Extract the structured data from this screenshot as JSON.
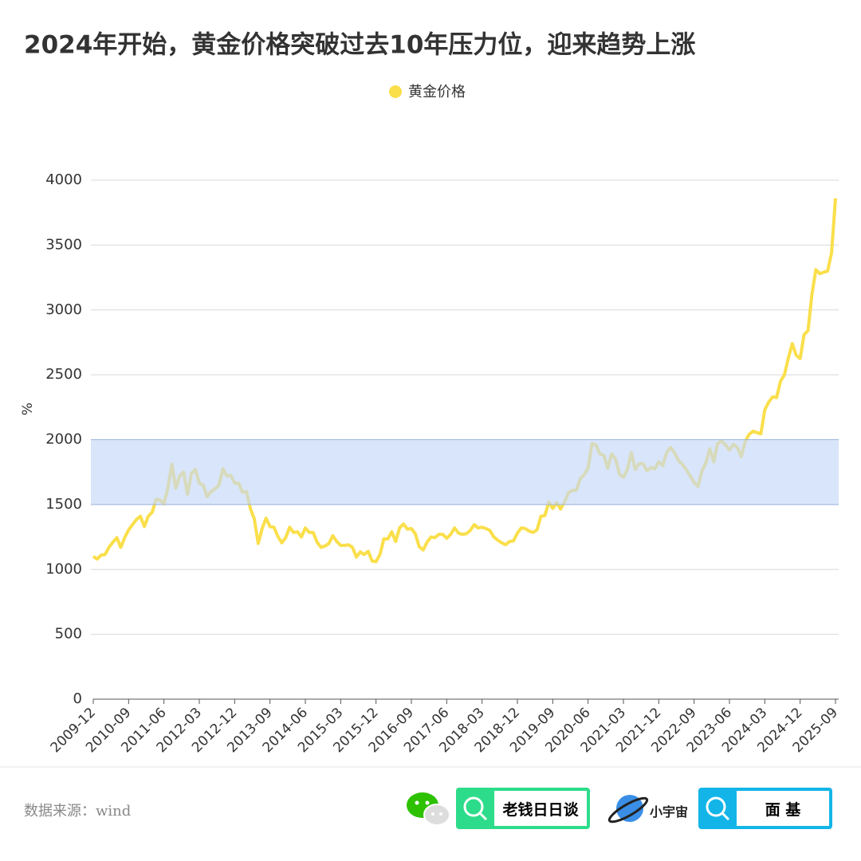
{
  "chart_data": {
    "type": "line",
    "title": "2024年开始，黄金价格突破过去10年压力位，迎来趋势上涨",
    "y_label": "%",
    "legend": "top",
    "grid": true,
    "categories": [
      "2009-12",
      null,
      null,
      null,
      null,
      null,
      null,
      null,
      null,
      "2010-09",
      null,
      null,
      null,
      null,
      null,
      null,
      null,
      null,
      "2011-06",
      null,
      null,
      null,
      null,
      null,
      null,
      null,
      null,
      "2012-03",
      null,
      null,
      null,
      null,
      null,
      null,
      null,
      null,
      "2012-12",
      null,
      null,
      null,
      null,
      null,
      null,
      null,
      null,
      "2013-09",
      null,
      null,
      null,
      null,
      null,
      null,
      null,
      null,
      "2014-06",
      null,
      null,
      null,
      null,
      null,
      null,
      null,
      null,
      "2015-03",
      null,
      null,
      null,
      null,
      null,
      null,
      null,
      null,
      "2015-12",
      null,
      null,
      null,
      null,
      null,
      null,
      null,
      null,
      "2016-09",
      null,
      null,
      null,
      null,
      null,
      null,
      null,
      null,
      "2017-06",
      null,
      null,
      null,
      null,
      null,
      null,
      null,
      null,
      "2018-03",
      null,
      null,
      null,
      null,
      null,
      null,
      null,
      null,
      "2018-12",
      null,
      null,
      null,
      null,
      null,
      null,
      null,
      null,
      "2019-09",
      null,
      null,
      null,
      null,
      null,
      null,
      null,
      null,
      "2020-06",
      null,
      null,
      null,
      null,
      null,
      null,
      null,
      null,
      "2021-03",
      null,
      null,
      null,
      null,
      null,
      null,
      null,
      null,
      "2021-12",
      null,
      null,
      null,
      null,
      null,
      null,
      null,
      null,
      "2022-09",
      null,
      null,
      null,
      null,
      null,
      null,
      null,
      null,
      "2023-06",
      null,
      null,
      null,
      null,
      null,
      null,
      null,
      null,
      "2024-03",
      null,
      null,
      null,
      null,
      null,
      null,
      null,
      null,
      "2024-12",
      null,
      null,
      null,
      null,
      null,
      null,
      null,
      null,
      "2025-09"
    ],
    "series": [
      {
        "name": "黄金价格",
        "color": "#fadf4b",
        "values": [
          1100,
          1080,
          1110,
          1115,
          1170,
          1210,
          1245,
          1170,
          1245,
          1305,
          1345,
          1385,
          1410,
          1330,
          1410,
          1440,
          1540,
          1535,
          1505,
          1630,
          1810,
          1625,
          1720,
          1750,
          1580,
          1740,
          1770,
          1665,
          1650,
          1560,
          1600,
          1620,
          1650,
          1775,
          1720,
          1725,
          1665,
          1665,
          1595,
          1600,
          1470,
          1390,
          1200,
          1315,
          1395,
          1330,
          1325,
          1255,
          1205,
          1245,
          1325,
          1285,
          1290,
          1250,
          1320,
          1285,
          1285,
          1210,
          1170,
          1180,
          1200,
          1260,
          1215,
          1185,
          1185,
          1190,
          1170,
          1095,
          1135,
          1115,
          1140,
          1065,
          1060,
          1115,
          1235,
          1235,
          1290,
          1215,
          1320,
          1350,
          1310,
          1315,
          1275,
          1175,
          1150,
          1210,
          1250,
          1245,
          1270,
          1270,
          1240,
          1270,
          1320,
          1280,
          1270,
          1275,
          1300,
          1345,
          1320,
          1325,
          1315,
          1300,
          1250,
          1225,
          1205,
          1190,
          1215,
          1220,
          1280,
          1320,
          1315,
          1295,
          1285,
          1305,
          1410,
          1415,
          1520,
          1470,
          1515,
          1465,
          1520,
          1590,
          1610,
          1610,
          1700,
          1730,
          1780,
          1970,
          1960,
          1890,
          1880,
          1780,
          1890,
          1850,
          1735,
          1710,
          1770,
          1900,
          1770,
          1815,
          1815,
          1760,
          1785,
          1775,
          1830,
          1800,
          1900,
          1940,
          1900,
          1840,
          1810,
          1770,
          1720,
          1670,
          1640,
          1760,
          1820,
          1930,
          1830,
          1970,
          1990,
          1960,
          1920,
          1965,
          1940,
          1870,
          1985,
          2040,
          2065,
          2055,
          2045,
          2230,
          2290,
          2330,
          2325,
          2450,
          2500,
          2630,
          2740,
          2650,
          2625,
          2810,
          2840,
          3120,
          3310,
          3280,
          3290,
          3300,
          3440,
          3860
        ]
      }
    ],
    "bands": [
      {
        "from": 1500,
        "to": 2000,
        "color": "#c4d7f7"
      }
    ],
    "ylim": [
      0,
      4000
    ],
    "yticks": [
      0,
      500,
      1000,
      1500,
      2000,
      2500,
      3000,
      3500,
      4000
    ]
  },
  "footer": {
    "source": "数据来源：wind",
    "brand1": "老钱日日谈",
    "brand2": "小宇宙",
    "brand3": "面 基"
  }
}
